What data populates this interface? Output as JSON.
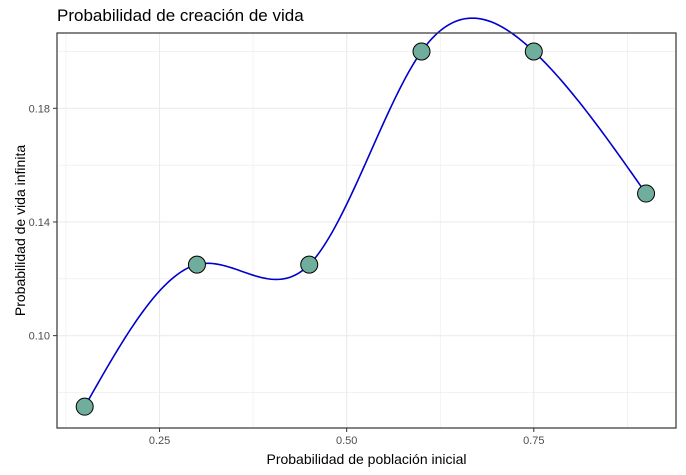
{
  "chart_data": {
    "type": "scatter",
    "title": "Probabilidad de creación de vida",
    "xlabel": "Probabilidad de población inicial",
    "ylabel": "Probabilidad de vida infinita",
    "x": [
      0.15,
      0.3,
      0.45,
      0.6,
      0.75,
      0.9
    ],
    "y": [
      0.075,
      0.125,
      0.125,
      0.2,
      0.2,
      0.15
    ],
    "x_ticks": [
      0.25,
      0.5,
      0.75
    ],
    "x_tick_labels": [
      "0.25",
      "0.50",
      "0.75"
    ],
    "y_ticks": [
      0.1,
      0.14,
      0.18
    ],
    "y_tick_labels": [
      "0.10",
      "0.14",
      "0.18"
    ],
    "xlim": [
      0.113,
      0.94
    ],
    "ylim": [
      0.0675,
      0.2065
    ],
    "grid": true,
    "smooth_line": true,
    "colors": {
      "points": "#6fae9c",
      "line": "#0000cc",
      "border": "#333333",
      "grid": "#ebebeb"
    }
  }
}
